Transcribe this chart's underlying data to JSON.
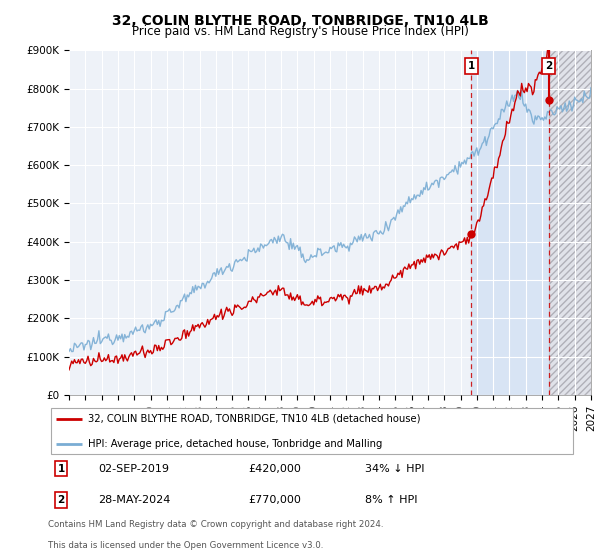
{
  "title": "32, COLIN BLYTHE ROAD, TONBRIDGE, TN10 4LB",
  "subtitle": "Price paid vs. HM Land Registry's House Price Index (HPI)",
  "ylim": [
    0,
    900000
  ],
  "yticks": [
    0,
    100000,
    200000,
    300000,
    400000,
    500000,
    600000,
    700000,
    800000,
    900000
  ],
  "ytick_labels": [
    "£0",
    "£100K",
    "£200K",
    "£300K",
    "£400K",
    "£500K",
    "£600K",
    "£700K",
    "£800K",
    "£900K"
  ],
  "hpi_color": "#7aadd4",
  "price_color": "#cc0000",
  "sale1_date": "02-SEP-2019",
  "sale1_price": 420000,
  "sale1_hpi_pct": "34% ↓ HPI",
  "sale2_date": "28-MAY-2024",
  "sale2_price": 770000,
  "sale2_hpi_pct": "8% ↑ HPI",
  "sale1_x": 2019.67,
  "sale2_x": 2024.4,
  "legend_line1": "32, COLIN BLYTHE ROAD, TONBRIDGE, TN10 4LB (detached house)",
  "legend_line2": "HPI: Average price, detached house, Tonbridge and Malling",
  "footnote1": "Contains HM Land Registry data © Crown copyright and database right 2024.",
  "footnote2": "This data is licensed under the Open Government Licence v3.0.",
  "background_color": "#ffffff",
  "plot_bg_color": "#eef2f8",
  "shade_color": "#d8e4f4",
  "hatch_bg_color": "#e8e8e8",
  "xmin": 1995,
  "xmax": 2027,
  "title_fontsize": 10,
  "subtitle_fontsize": 8.5,
  "tick_fontsize": 7.5
}
